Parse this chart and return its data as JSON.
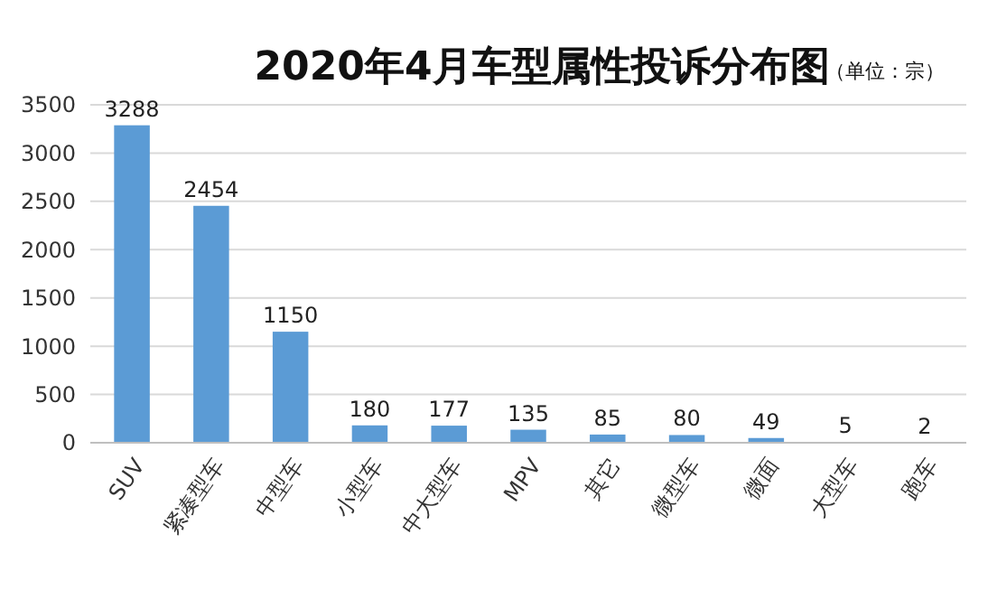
{
  "chart_data": {
    "type": "bar",
    "title": "2020年4月车型属性投诉分布图",
    "subtitle": "（单位：宗）",
    "categories": [
      "SUV",
      "紧凑型车",
      "中型车",
      "小型车",
      "中大型车",
      "MPV",
      "其它",
      "微型车",
      "微面",
      "大型车",
      "跑车"
    ],
    "values": [
      3288,
      2454,
      1150,
      180,
      177,
      135,
      85,
      80,
      49,
      5,
      2
    ],
    "color": "#5b9bd5",
    "ylim": [
      0,
      3500
    ],
    "yticks": [
      0,
      500,
      1000,
      1500,
      2000,
      2500,
      3000,
      3500
    ],
    "grid": "y",
    "data_labels": true
  }
}
